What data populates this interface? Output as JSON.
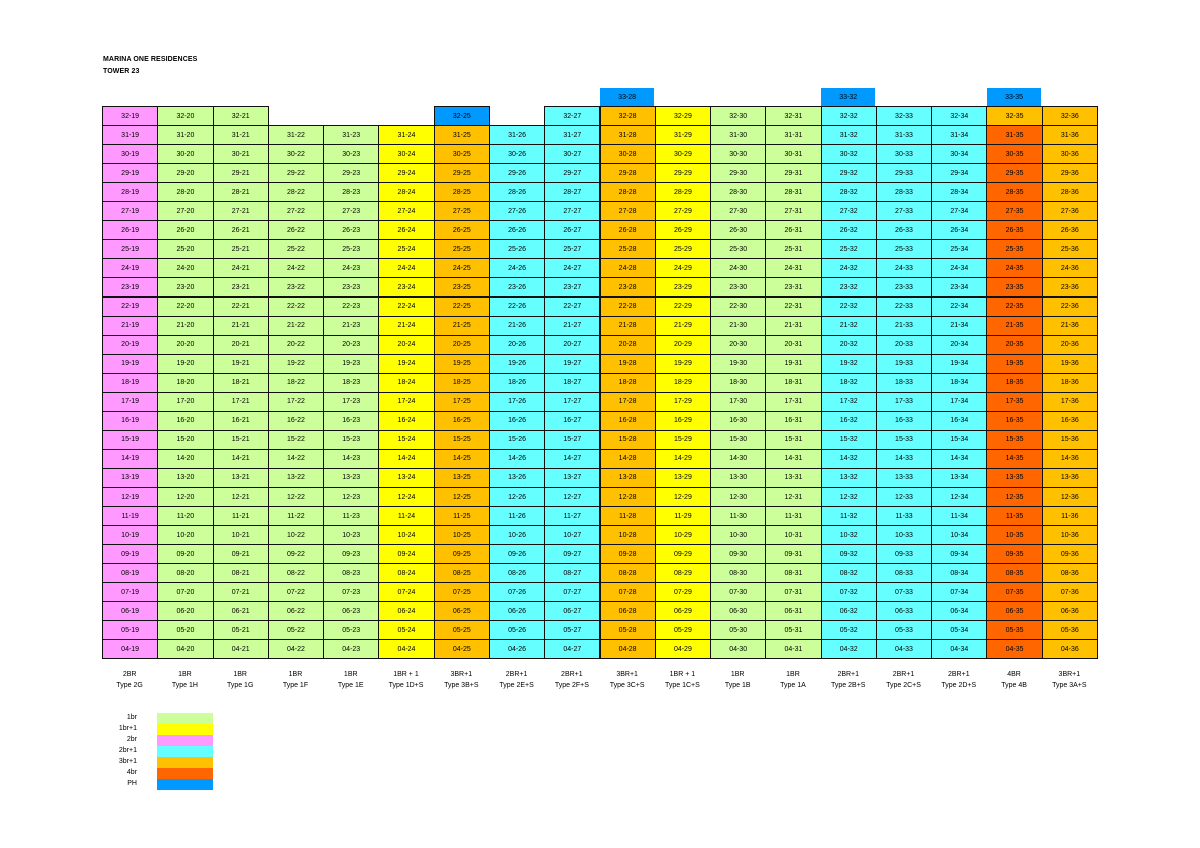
{
  "header": {
    "line1": "MARINA ONE RESIDENCES",
    "line2": "TOWER 23"
  },
  "colors": {
    "1br": "#ccff99",
    "1br+1": "#ffff00",
    "2br": "#ff99ff",
    "2br+1": "#66ffff",
    "3br+1": "#ffc000",
    "4br": "#ff6600",
    "PH": "#0099ff"
  },
  "columns": [
    {
      "id": "19",
      "category": "2br",
      "type_line1": "2BR",
      "type_line2": "Type 2G"
    },
    {
      "id": "20",
      "category": "1br",
      "type_line1": "1BR",
      "type_line2": "Type 1H"
    },
    {
      "id": "21",
      "category": "1br",
      "type_line1": "1BR",
      "type_line2": "Type 1G"
    },
    {
      "id": "22",
      "category": "1br",
      "type_line1": "1BR",
      "type_line2": "Type 1F"
    },
    {
      "id": "23",
      "category": "1br",
      "type_line1": "1BR",
      "type_line2": "Type 1E"
    },
    {
      "id": "24",
      "category": "1br+1",
      "type_line1": "1BR + 1",
      "type_line2": "Type 1D+S"
    },
    {
      "id": "25",
      "category": "3br+1",
      "type_line1": "3BR+1",
      "type_line2": "Type 3B+S"
    },
    {
      "id": "26",
      "category": "2br+1",
      "type_line1": "2BR+1",
      "type_line2": "Type 2E+S"
    },
    {
      "id": "27",
      "category": "2br+1",
      "type_line1": "2BR+1",
      "type_line2": "Type 2F+S"
    },
    {
      "id": "28",
      "category": "3br+1",
      "type_line1": "3BR+1",
      "type_line2": "Type 3C+S"
    },
    {
      "id": "29",
      "category": "1br+1",
      "type_line1": "1BR + 1",
      "type_line2": "Type 1C+S"
    },
    {
      "id": "30",
      "category": "1br",
      "type_line1": "1BR",
      "type_line2": "Type 1B"
    },
    {
      "id": "31",
      "category": "1br",
      "type_line1": "1BR",
      "type_line2": "Type 1A"
    },
    {
      "id": "32",
      "category": "2br+1",
      "type_line1": "2BR+1",
      "type_line2": "Type 2B+S"
    },
    {
      "id": "33",
      "category": "2br+1",
      "type_line1": "2BR+1",
      "type_line2": "Type 2C+S"
    },
    {
      "id": "34",
      "category": "2br+1",
      "type_line1": "2BR+1",
      "type_line2": "Type 2D+S"
    },
    {
      "id": "35",
      "category": "4br",
      "type_line1": "4BR",
      "type_line2": "Type 4B"
    },
    {
      "id": "36",
      "category": "3br+1",
      "type_line1": "3BR+1",
      "type_line2": "Type 3A+S"
    }
  ],
  "floors": [
    "32",
    "31",
    "30",
    "29",
    "28",
    "27",
    "26",
    "25",
    "24",
    "23",
    "22",
    "21",
    "20",
    "19",
    "18",
    "17",
    "16",
    "15",
    "14",
    "13",
    "12",
    "11",
    "10",
    "09",
    "08",
    "07",
    "06",
    "05",
    "04"
  ],
  "floor32_units": [
    {
      "label": "32-19",
      "category": "2br"
    },
    {
      "label": "32-20",
      "category": "1br"
    },
    {
      "label": "32-21",
      "category": "1br"
    },
    null,
    null,
    null,
    {
      "label": "32-25",
      "category": "PH"
    },
    null,
    {
      "label": "32-27",
      "category": "2br+1"
    },
    {
      "label": "32-28",
      "category": "3br+1"
    },
    {
      "label": "32-29",
      "category": "1br+1"
    },
    {
      "label": "32-30",
      "category": "1br"
    },
    {
      "label": "32-31",
      "category": "1br"
    },
    {
      "label": "32-32",
      "category": "2br+1"
    },
    {
      "label": "32-33",
      "category": "2br+1"
    },
    {
      "label": "32-34",
      "category": "2br+1"
    },
    {
      "label": "32-35",
      "category": "3br+1"
    },
    {
      "label": "32-36",
      "category": "3br+1"
    }
  ],
  "penthouses": [
    {
      "label": "33-28",
      "column_index": 9
    },
    {
      "label": "33-32",
      "column_index": 13
    },
    {
      "label": "33-35",
      "column_index": 16
    }
  ],
  "legend": [
    {
      "label": "1br",
      "category": "1br"
    },
    {
      "label": "1br+1",
      "category": "1br+1"
    },
    {
      "label": "2br",
      "category": "2br"
    },
    {
      "label": "2br+1",
      "category": "2br+1"
    },
    {
      "label": "3br+1",
      "category": "3br+1"
    },
    {
      "label": "4br",
      "category": "4br"
    },
    {
      "label": "PH",
      "category": "PH"
    }
  ]
}
